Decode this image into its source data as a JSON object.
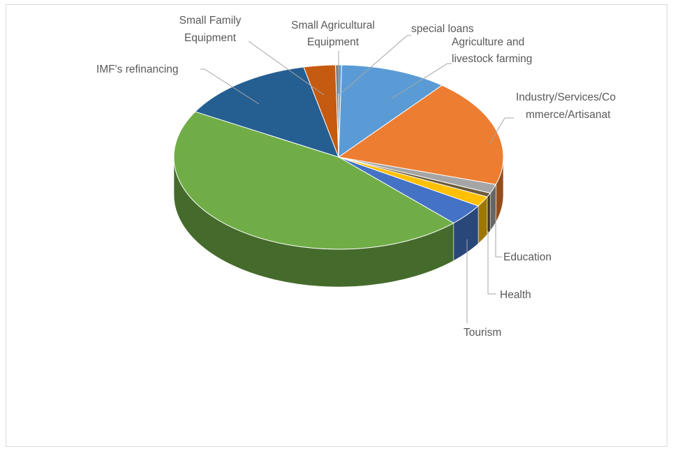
{
  "chart_data": {
    "type": "pie",
    "style": "3d-exploded-none",
    "title": "",
    "slices": [
      {
        "label": "special loans",
        "value": 0.3,
        "color": "#5b9bd5"
      },
      {
        "label": "Agriculture and livestock farming",
        "value": 10.5,
        "color": "#5b9bd5"
      },
      {
        "label": "Industry/Services/Commerce/Artisanat",
        "value": 19.0,
        "color": "#ed7d31"
      },
      {
        "label": "",
        "value": 1.6,
        "color": "#a5a5a5"
      },
      {
        "label": "Education",
        "value": 0.7,
        "color": "#6b5a3a"
      },
      {
        "label": "Health",
        "value": 1.8,
        "color": "#ffc000"
      },
      {
        "label": "Tourism",
        "value": 3.8,
        "color": "#4472c4"
      },
      {
        "label": "",
        "value": 45.5,
        "color": "#70ad47"
      },
      {
        "label": "IMF's refinancing",
        "value": 13.4,
        "color": "#255e91"
      },
      {
        "label": "Small Family Equipment",
        "value": 3.1,
        "color": "#c55a11"
      },
      {
        "label": "Small Agricultural Equipment",
        "value": 0.3,
        "color": "#7f7f7f"
      }
    ],
    "legend": "none",
    "data_labels": "outside-with-leader-lines"
  }
}
